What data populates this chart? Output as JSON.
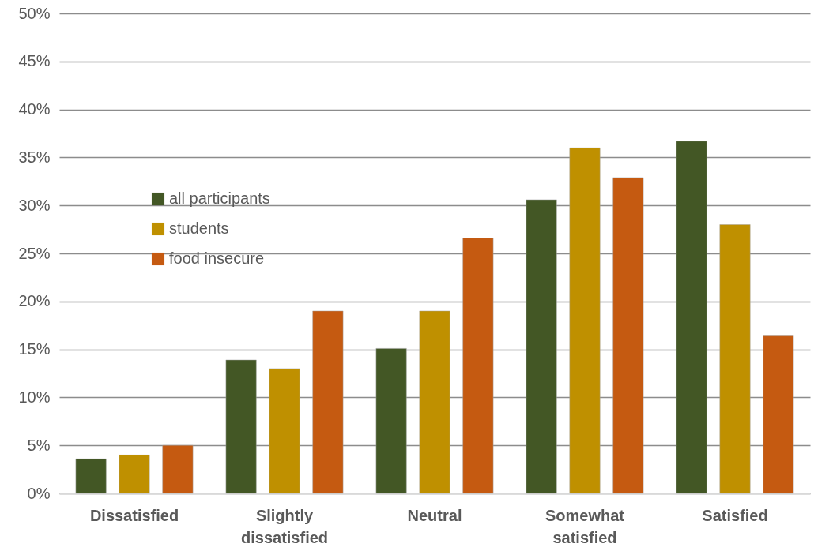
{
  "chart_data": {
    "type": "bar",
    "categories": [
      "Dissatisfied",
      "Slightly dissatisfied",
      "Neutral",
      "Somewhat satisfied",
      "Satisfied"
    ],
    "series": [
      {
        "name": "all participants",
        "color": "#435725",
        "values": [
          3.6,
          13.9,
          15.1,
          30.6,
          36.7
        ]
      },
      {
        "name": "students",
        "color": "#bf9000",
        "values": [
          4.0,
          13.0,
          19.0,
          36.0,
          28.0
        ]
      },
      {
        "name": "food insecure",
        "color": "#c55a11",
        "values": [
          5.0,
          19.0,
          26.6,
          32.9,
          16.4
        ]
      }
    ],
    "ylim": [
      0,
      50
    ],
    "yticks": [
      {
        "value": 0,
        "label": "0%"
      },
      {
        "value": 5,
        "label": "5%"
      },
      {
        "value": 10,
        "label": "10%"
      },
      {
        "value": 15,
        "label": "15%"
      },
      {
        "value": 20,
        "label": "20%"
      },
      {
        "value": 25,
        "label": "25%"
      },
      {
        "value": 30,
        "label": "30%"
      },
      {
        "value": 35,
        "label": "35%"
      },
      {
        "value": 40,
        "label": "40%"
      },
      {
        "value": 45,
        "label": "45%"
      },
      {
        "value": 50,
        "label": "50%"
      }
    ],
    "grid": "y",
    "legend": "top left"
  }
}
